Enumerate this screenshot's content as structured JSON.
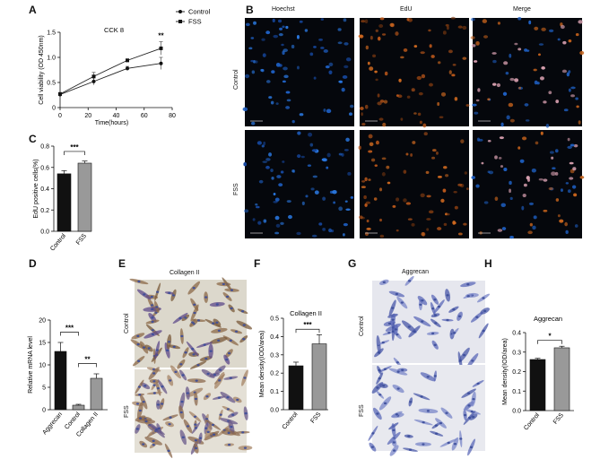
{
  "panels": [
    {
      "letter": "A"
    },
    {
      "letter": "B"
    },
    {
      "letter": "C"
    },
    {
      "letter": "D"
    },
    {
      "letter": "E"
    },
    {
      "letter": "F"
    },
    {
      "letter": "G"
    },
    {
      "letter": "H"
    }
  ],
  "chart_data": [
    {
      "panel": "A",
      "type": "line",
      "title": "CCK 8",
      "xlabel": "Time(hours)",
      "ylabel": "Cell viability (OD 450nm)",
      "xlim": [
        0,
        80
      ],
      "ylim": [
        0,
        1.5
      ],
      "xticks": [
        "0",
        "20",
        "40",
        "60",
        "80"
      ],
      "yticks": [
        "0",
        "0.5",
        "1.0",
        "1.5"
      ],
      "x": [
        0,
        24,
        48,
        72
      ],
      "series": [
        {
          "name": "Control",
          "values": [
            0.26,
            0.52,
            0.78,
            0.88
          ],
          "errors": [
            0.03,
            0.07,
            0.04,
            0.12
          ],
          "color": "#222222"
        },
        {
          "name": "FSS",
          "values": [
            0.27,
            0.62,
            0.94,
            1.18
          ],
          "errors": [
            0.03,
            0.08,
            0.03,
            0.13
          ],
          "color": "#222222"
        }
      ],
      "annotation": "**",
      "legend": "top-right"
    },
    {
      "panel": "C",
      "type": "bar",
      "categories": [
        "Control",
        "FSS"
      ],
      "values": [
        0.54,
        0.64
      ],
      "errors": [
        0.03,
        0.02
      ],
      "colors": [
        "#111111",
        "#999999"
      ],
      "ylabel": "EdU positive cells(%)",
      "ylim": [
        0,
        0.8
      ],
      "yticks": [
        "0.0",
        "0.2",
        "0.4",
        "0.6",
        "0.8"
      ],
      "significance": "***"
    },
    {
      "panel": "D",
      "type": "bar",
      "categories": [
        "Aggrecan",
        "Control",
        "Collagen II"
      ],
      "values": [
        13,
        1,
        7
      ],
      "errors": [
        2,
        0.2,
        1
      ],
      "colors": [
        "#111111",
        "#999999",
        "#999999"
      ],
      "ylabel": "Relative mRNA level",
      "ylim": [
        0,
        20
      ],
      "yticks": [
        "0",
        "5",
        "10",
        "15",
        "20"
      ],
      "significance": [
        "***",
        "**"
      ]
    },
    {
      "panel": "F",
      "type": "bar",
      "title": "Collagen II",
      "categories": [
        "Control",
        "FSS"
      ],
      "values": [
        0.24,
        0.36
      ],
      "errors": [
        0.02,
        0.05
      ],
      "colors": [
        "#111111",
        "#999999"
      ],
      "ylabel": "Mean density(IOD/area)",
      "ylim": [
        0,
        0.5
      ],
      "yticks": [
        "0.0",
        "0.1",
        "0.2",
        "0.3",
        "0.4",
        "0.5"
      ],
      "significance": "***"
    },
    {
      "panel": "H",
      "type": "bar",
      "title": "Aggrecan",
      "categories": [
        "Control",
        "FSS"
      ],
      "values": [
        0.262,
        0.322
      ],
      "errors": [
        0.006,
        0.008
      ],
      "colors": [
        "#111111",
        "#999999"
      ],
      "ylabel": "Mean density(IOD/area)",
      "ylim": [
        0,
        0.4
      ],
      "yticks": [
        "0.0",
        "0.1",
        "0.2",
        "0.3",
        "0.4"
      ],
      "significance": "*"
    }
  ],
  "micrographs": {
    "B": {
      "columns": [
        "Hoechst",
        "EdU",
        "Merge"
      ],
      "rows": [
        "Control",
        "FSS"
      ]
    },
    "E": {
      "title": "Collagen II",
      "rows": [
        "Control",
        "FSS"
      ]
    },
    "G": {
      "title": "Aggrecan",
      "rows": [
        "Control",
        "FSS"
      ]
    }
  }
}
